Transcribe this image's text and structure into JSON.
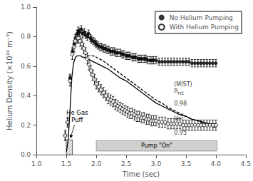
{
  "chart_data": {
    "type": "scatter",
    "xlabel": "Time (sec)",
    "ylabel": "Helium Density (×10¹⁹ m⁻³)",
    "xlim": [
      1.0,
      4.5
    ],
    "ylim": [
      0.0,
      1.0
    ],
    "xticks": [
      {
        "value": 1.0,
        "label": "1.0"
      },
      1.5,
      {
        "value": 2.0,
        "label": "2.0"
      },
      2.5,
      {
        "value": 3.0,
        "label": "3.0"
      },
      3.5,
      {
        "value": 4.0,
        "label": "4.0"
      },
      4.5
    ],
    "yticks": [
      {
        "value": 0.0,
        "label": "0.0"
      },
      0.2,
      0.4,
      0.6,
      0.8,
      {
        "value": 1.0,
        "label": "1.0"
      }
    ],
    "grid": false,
    "legend": "upper right",
    "series": [
      {
        "name": "No Helium Pumping",
        "type": "scatter",
        "marker": "circle",
        "color": "#000000",
        "x": [
          1.48,
          1.52,
          1.56,
          1.6,
          1.63,
          1.65,
          1.68,
          1.7,
          1.72,
          1.75,
          1.77,
          1.8,
          1.82,
          1.85,
          1.87,
          1.9,
          1.92,
          1.95,
          1.98,
          2.0,
          2.03,
          2.06,
          2.09,
          2.12,
          2.15,
          2.18,
          2.21,
          2.24,
          2.27,
          2.3,
          2.33,
          2.36,
          2.4,
          2.43,
          2.46,
          2.5,
          2.53,
          2.56,
          2.6,
          2.63,
          2.66,
          2.7,
          2.73,
          2.76,
          2.8,
          2.83,
          2.86,
          2.9,
          2.93,
          2.96,
          3.0,
          3.05,
          3.1,
          3.15,
          3.2,
          3.25,
          3.3,
          3.35,
          3.4,
          3.45,
          3.5,
          3.55,
          3.6,
          3.65,
          3.7,
          3.75,
          3.8,
          3.85,
          3.9,
          3.95,
          4.0
        ],
        "values": [
          0.13,
          0.22,
          0.52,
          0.7,
          0.75,
          0.79,
          0.82,
          0.84,
          0.83,
          0.85,
          0.82,
          0.83,
          0.81,
          0.8,
          0.82,
          0.79,
          0.78,
          0.77,
          0.76,
          0.75,
          0.74,
          0.73,
          0.73,
          0.72,
          0.72,
          0.71,
          0.71,
          0.7,
          0.7,
          0.7,
          0.69,
          0.69,
          0.69,
          0.68,
          0.68,
          0.67,
          0.67,
          0.67,
          0.66,
          0.66,
          0.66,
          0.65,
          0.65,
          0.65,
          0.65,
          0.65,
          0.64,
          0.64,
          0.64,
          0.64,
          0.64,
          0.63,
          0.63,
          0.63,
          0.63,
          0.63,
          0.63,
          0.63,
          0.63,
          0.63,
          0.63,
          0.63,
          0.62,
          0.62,
          0.62,
          0.62,
          0.62,
          0.62,
          0.62,
          0.62,
          0.62
        ],
        "yerr": [
          0.025,
          0.025,
          0.025,
          0.025,
          0.025,
          0.025,
          0.025,
          0.025,
          0.025,
          0.025,
          0.025,
          0.025,
          0.025,
          0.025,
          0.025,
          0.025,
          0.025,
          0.025,
          0.025,
          0.025,
          0.025,
          0.025,
          0.025,
          0.025,
          0.025,
          0.025,
          0.025,
          0.025,
          0.025,
          0.025,
          0.025,
          0.025,
          0.025,
          0.025,
          0.025,
          0.025,
          0.025,
          0.025,
          0.025,
          0.025,
          0.025,
          0.025,
          0.025,
          0.025,
          0.025,
          0.025,
          0.025,
          0.025,
          0.025,
          0.025,
          0.025,
          0.025,
          0.025,
          0.025,
          0.025,
          0.025,
          0.025,
          0.025,
          0.025,
          0.025,
          0.025,
          0.025,
          0.025,
          0.025,
          0.025,
          0.025,
          0.025,
          0.025,
          0.025,
          0.025,
          0.025
        ]
      },
      {
        "name": "With Helium Pumping",
        "type": "scatter",
        "marker": "open_circle",
        "color": "#000000",
        "x": [
          1.48,
          1.52,
          1.56,
          1.6,
          1.63,
          1.65,
          1.68,
          1.7,
          1.73,
          1.76,
          1.79,
          1.82,
          1.85,
          1.88,
          1.91,
          1.94,
          1.97,
          2.0,
          2.04,
          2.08,
          2.12,
          2.16,
          2.2,
          2.24,
          2.28,
          2.32,
          2.36,
          2.4,
          2.44,
          2.48,
          2.52,
          2.56,
          2.6,
          2.64,
          2.68,
          2.72,
          2.76,
          2.8,
          2.84,
          2.88,
          2.92,
          2.96,
          3.0,
          3.05,
          3.1,
          3.15,
          3.2,
          3.25,
          3.3,
          3.35,
          3.4,
          3.45,
          3.5,
          3.55,
          3.6,
          3.65,
          3.7,
          3.75,
          3.8,
          3.85,
          3.9,
          3.95,
          4.0
        ],
        "values": [
          0.13,
          0.22,
          0.5,
          0.68,
          0.73,
          0.77,
          0.79,
          0.79,
          0.77,
          0.75,
          0.72,
          0.69,
          0.65,
          0.61,
          0.57,
          0.54,
          0.51,
          0.48,
          0.46,
          0.44,
          0.42,
          0.4,
          0.38,
          0.37,
          0.36,
          0.34,
          0.33,
          0.32,
          0.31,
          0.3,
          0.29,
          0.28,
          0.28,
          0.27,
          0.26,
          0.26,
          0.25,
          0.25,
          0.24,
          0.24,
          0.23,
          0.23,
          0.23,
          0.22,
          0.22,
          0.22,
          0.21,
          0.21,
          0.21,
          0.21,
          0.21,
          0.2,
          0.2,
          0.2,
          0.2,
          0.2,
          0.2,
          0.2,
          0.2,
          0.2,
          0.2,
          0.2,
          0.2
        ],
        "yerr": [
          0.035,
          0.035,
          0.035,
          0.035,
          0.035,
          0.035,
          0.035,
          0.035,
          0.035,
          0.035,
          0.035,
          0.035,
          0.035,
          0.035,
          0.035,
          0.035,
          0.035,
          0.035,
          0.035,
          0.035,
          0.035,
          0.035,
          0.035,
          0.035,
          0.035,
          0.035,
          0.035,
          0.035,
          0.035,
          0.035,
          0.035,
          0.035,
          0.035,
          0.035,
          0.035,
          0.035,
          0.035,
          0.035,
          0.035,
          0.035,
          0.035,
          0.035,
          0.035,
          0.035,
          0.035,
          0.035,
          0.035,
          0.035,
          0.035,
          0.035,
          0.035,
          0.035,
          0.035,
          0.035,
          0.035,
          0.035,
          0.035,
          0.035,
          0.035,
          0.035,
          0.035,
          0.035,
          0.035
        ]
      },
      {
        "type": "line",
        "line_style": "solid",
        "color": "#000000",
        "x": [
          1.5,
          1.53,
          1.56,
          1.59,
          1.62,
          1.65,
          1.68,
          1.71,
          1.74,
          1.77,
          1.8,
          1.85,
          1.9,
          1.95,
          2.0,
          2.1,
          2.2,
          2.3,
          2.4,
          2.5,
          2.6,
          2.7,
          2.8,
          2.9,
          3.0,
          3.1,
          3.2,
          3.3,
          3.4,
          3.5,
          3.6,
          3.7,
          3.8,
          3.9,
          4.0
        ],
        "values": [
          0.02,
          0.1,
          0.3,
          0.52,
          0.62,
          0.66,
          0.67,
          0.67,
          0.67,
          0.66,
          0.66,
          0.65,
          0.64,
          0.63,
          0.62,
          0.6,
          0.58,
          0.55,
          0.52,
          0.5,
          0.47,
          0.44,
          0.41,
          0.38,
          0.35,
          0.33,
          0.31,
          0.29,
          0.27,
          0.26,
          0.24,
          0.23,
          0.22,
          0.21,
          0.21
        ]
      },
      {
        "type": "line",
        "line_style": "dashed",
        "color": "#000000",
        "x": [
          1.85,
          1.9,
          1.95,
          2.0,
          2.1,
          2.2,
          2.3,
          2.4,
          2.5,
          2.6,
          2.7,
          2.8,
          2.9,
          3.0,
          3.1,
          3.2,
          3.3,
          3.4,
          3.5,
          3.6,
          3.7,
          3.8,
          3.9,
          4.0
        ],
        "values": [
          0.67,
          0.67,
          0.67,
          0.66,
          0.64,
          0.61,
          0.58,
          0.55,
          0.52,
          0.49,
          0.46,
          0.43,
          0.4,
          0.37,
          0.35,
          0.32,
          0.3,
          0.28,
          0.26,
          0.24,
          0.23,
          0.21,
          0.2,
          0.18
        ]
      }
    ],
    "regions": [
      {
        "x": [
          1.5,
          1.6
        ],
        "y": [
          0.0,
          0.1
        ],
        "marker": "hatch"
      },
      {
        "x": [
          2.0,
          4.02
        ],
        "y": [
          0.025,
          0.095
        ],
        "marker": "shaded",
        "text": "Pump \"On\""
      }
    ],
    "annotations": [
      {
        "text": "He Gas\nPuff",
        "x": 1.68,
        "y": 0.26,
        "arrow_x": 1.565,
        "arrow_y": 0.11
      }
    ],
    "texts": [
      {
        "text": "(MIST)\nR",
        "subscript": "HE",
        "x": 3.3,
        "y": 0.5
      },
      {
        "text": "0.98",
        "x": 3.3,
        "y": 0.37
      },
      {
        "text": "Var.",
        "x": 3.3,
        "y": 0.27
      },
      {
        "text": "0.95",
        "x": 3.3,
        "y": 0.17
      }
    ]
  }
}
